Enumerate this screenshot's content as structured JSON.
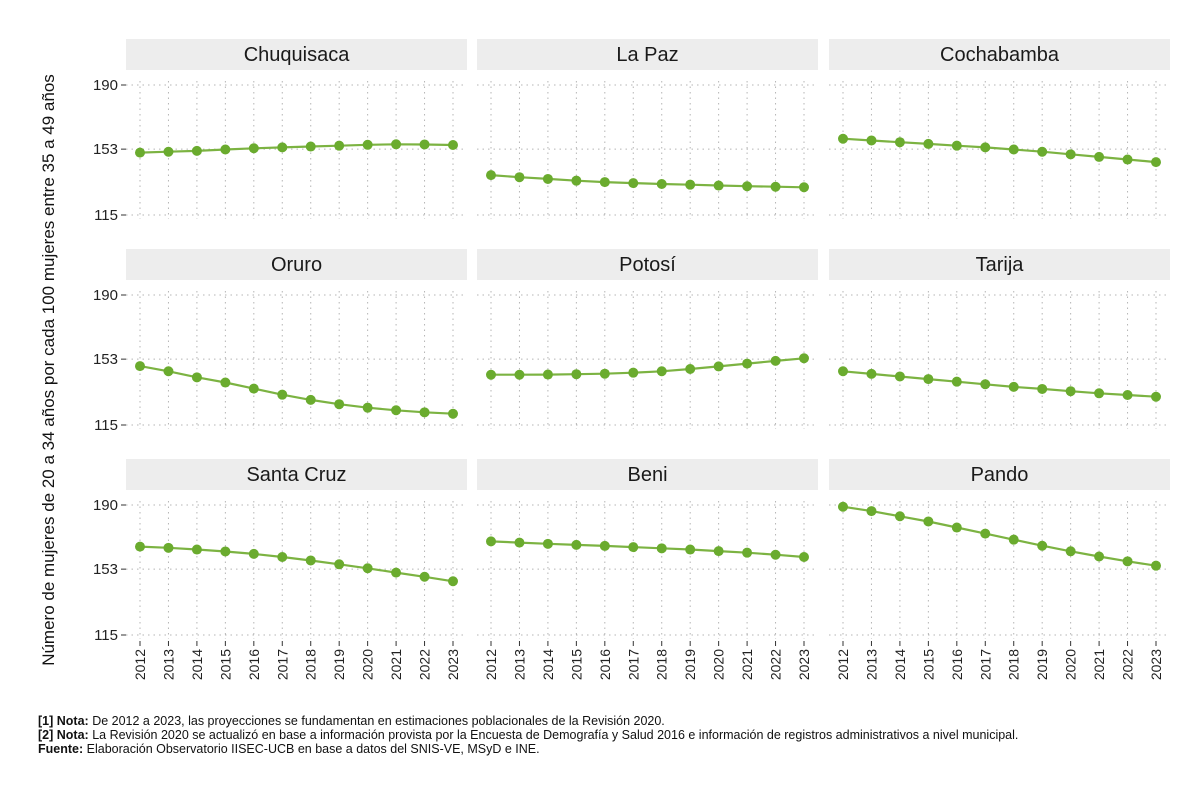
{
  "chart_data": {
    "type": "line",
    "title": "",
    "ylabel": "Número de mujeres de 20 a 34 años por cada 100 mujeres entre 35 a 49 años",
    "xlabel": "",
    "x": [
      "2012",
      "2013",
      "2014",
      "2015",
      "2016",
      "2017",
      "2018",
      "2019",
      "2020",
      "2021",
      "2022",
      "2023"
    ],
    "yticks": [
      "190",
      "153",
      "115"
    ],
    "ylim": [
      115,
      190
    ],
    "grid": true,
    "line_color": "#7cb342",
    "marker_color": "#6aab2e",
    "strip_color": "#ededed",
    "panels": [
      {
        "name": "Chuquisaca",
        "values": [
          151,
          151.5,
          152,
          152.8,
          153.5,
          154,
          154.5,
          155,
          155.5,
          155.8,
          155.7,
          155.4
        ]
      },
      {
        "name": "La Paz",
        "values": [
          138,
          136.8,
          135.8,
          134.8,
          134,
          133.4,
          132.9,
          132.5,
          132,
          131.6,
          131.3,
          131
        ]
      },
      {
        "name": "Cochabamba",
        "values": [
          159,
          158,
          157,
          156,
          155,
          154,
          152.8,
          151.5,
          150,
          148.5,
          147,
          145.5
        ]
      },
      {
        "name": "Oruro",
        "values": [
          149,
          146,
          142.5,
          139.5,
          136,
          132.5,
          129.5,
          127,
          125,
          123.5,
          122.3,
          121.5
        ]
      },
      {
        "name": "Potosí",
        "values": [
          144,
          144,
          144.1,
          144.3,
          144.6,
          145.2,
          146,
          147.3,
          148.8,
          150.4,
          152,
          153.5
        ]
      },
      {
        "name": "Tarija",
        "values": [
          146,
          144.5,
          143,
          141.5,
          140,
          138.5,
          137,
          135.8,
          134.5,
          133.3,
          132.3,
          131.3
        ]
      },
      {
        "name": "Santa Cruz",
        "values": [
          166,
          165.3,
          164.3,
          163.2,
          161.8,
          160,
          158,
          155.8,
          153.5,
          151,
          148.6,
          146
        ]
      },
      {
        "name": "Beni",
        "values": [
          169,
          168.3,
          167.6,
          167,
          166.4,
          165.7,
          165,
          164.3,
          163.4,
          162.5,
          161.3,
          160
        ]
      },
      {
        "name": "Pando",
        "values": [
          189,
          186.5,
          183.5,
          180.5,
          177,
          173.5,
          170,
          166.5,
          163.3,
          160.3,
          157.5,
          155
        ]
      }
    ]
  },
  "notes": [
    {
      "label": "[1] Nota:",
      "text": "De 2012 a 2023, las proyecciones se fundamentan en estimaciones poblacionales de la Revisión 2020."
    },
    {
      "label": "[2] Nota:",
      "text": "La Revisión 2020 se actualizó en base a información provista por la Encuesta de Demografía y Salud 2016 e información de registros administrativos a nivel municipal."
    },
    {
      "label": "Fuente:",
      "text": "Elaboración Observatorio IISEC-UCB en base a datos del SNIS-VE, MSyD e INE."
    }
  ]
}
